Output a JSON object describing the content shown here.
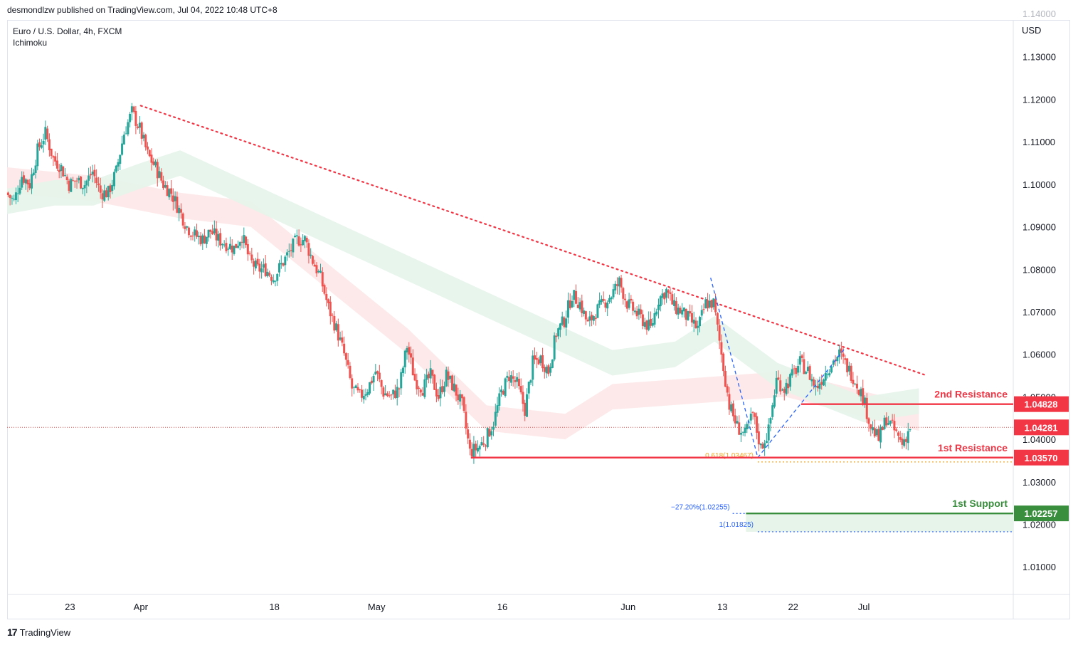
{
  "header": {
    "published_line": "desmondlzw published on TradingView.com, Jul 04, 2022 10:48 UTC+8"
  },
  "legend": {
    "symbol_line": "Euro / U.S. Dollar, 4h, FXCM",
    "indicator": "Ichimoku"
  },
  "footer": {
    "brand": "TradingView"
  },
  "colors": {
    "up": "#26a69a",
    "down": "#ef5350",
    "resistance": "#f23645",
    "support": "#388e3c",
    "fib_blue": "#2962ff",
    "fib_gold": "#f5a623",
    "cloud_bull": "#e6f4ea",
    "cloud_bear": "#fde7e7",
    "price_tag": "#f23645",
    "support_tag": "#388e3c"
  },
  "chart_data": {
    "type": "candlestick",
    "currency_label": "USD",
    "ylim": [
      1.0035,
      1.1385
    ],
    "y_ticks": [
      "1.13000",
      "1.12000",
      "1.11000",
      "1.10000",
      "1.09000",
      "1.08000",
      "1.07000",
      "1.06000",
      "1.05000",
      "1.04000",
      "1.03000",
      "1.02000",
      "1.01000"
    ],
    "y_tick_values": [
      1.13,
      1.12,
      1.11,
      1.1,
      1.09,
      1.08,
      1.07,
      1.06,
      1.05,
      1.04,
      1.03,
      1.02,
      1.01
    ],
    "x_ticks": [
      {
        "label": "23",
        "day": 5
      },
      {
        "label": "Apr",
        "day": 14
      },
      {
        "label": "18",
        "day": 31
      },
      {
        "label": "May",
        "day": 44
      },
      {
        "label": "16",
        "day": 60
      },
      {
        "label": "Jun",
        "day": 76
      },
      {
        "label": "13",
        "day": 88
      },
      {
        "label": "22",
        "day": 97
      },
      {
        "label": "Jul",
        "day": 106
      }
    ],
    "x_day_range": [
      -3,
      125
    ],
    "price_path": [
      [
        -3,
        1.098
      ],
      [
        -2,
        1.096
      ],
      [
        -1,
        1.102
      ],
      [
        0,
        1.1
      ],
      [
        1,
        1.108
      ],
      [
        2,
        1.112
      ],
      [
        3,
        1.106
      ],
      [
        4,
        1.104
      ],
      [
        5,
        1.1
      ],
      [
        6,
        1.101
      ],
      [
        7,
        1.1
      ],
      [
        8,
        1.103
      ],
      [
        9,
        1.098
      ],
      [
        10,
        1.098
      ],
      [
        11,
        1.103
      ],
      [
        12,
        1.112
      ],
      [
        13,
        1.117
      ],
      [
        14,
        1.113
      ],
      [
        15,
        1.107
      ],
      [
        16,
        1.104
      ],
      [
        17,
        1.1
      ],
      [
        18,
        1.098
      ],
      [
        19,
        1.094
      ],
      [
        20,
        1.09
      ],
      [
        21,
        1.088
      ],
      [
        22,
        1.087
      ],
      [
        23,
        1.089
      ],
      [
        24,
        1.087
      ],
      [
        25,
        1.086
      ],
      [
        26,
        1.085
      ],
      [
        27,
        1.088
      ],
      [
        28,
        1.082
      ],
      [
        29,
        1.08
      ],
      [
        30,
        1.08
      ],
      [
        31,
        1.078
      ],
      [
        32,
        1.081
      ],
      [
        33,
        1.084
      ],
      [
        34,
        1.087
      ],
      [
        35,
        1.087
      ],
      [
        36,
        1.082
      ],
      [
        37,
        1.078
      ],
      [
        38,
        1.071
      ],
      [
        39,
        1.066
      ],
      [
        40,
        1.06
      ],
      [
        41,
        1.052
      ],
      [
        42,
        1.05
      ],
      [
        43,
        1.052
      ],
      [
        44,
        1.056
      ],
      [
        45,
        1.051
      ],
      [
        46,
        1.05
      ],
      [
        47,
        1.052
      ],
      [
        48,
        1.062
      ],
      [
        49,
        1.054
      ],
      [
        50,
        1.052
      ],
      [
        51,
        1.055
      ],
      [
        52,
        1.05
      ],
      [
        53,
        1.055
      ],
      [
        54,
        1.052
      ],
      [
        55,
        1.048
      ],
      [
        56,
        1.037
      ],
      [
        57,
        1.038
      ],
      [
        58,
        1.04
      ],
      [
        59,
        1.044
      ],
      [
        60,
        1.051
      ],
      [
        61,
        1.055
      ],
      [
        62,
        1.053
      ],
      [
        63,
        1.047
      ],
      [
        64,
        1.058
      ],
      [
        65,
        1.059
      ],
      [
        66,
        1.056
      ],
      [
        67,
        1.065
      ],
      [
        68,
        1.068
      ],
      [
        69,
        1.074
      ],
      [
        70,
        1.072
      ],
      [
        71,
        1.067
      ],
      [
        72,
        1.07
      ],
      [
        73,
        1.072
      ],
      [
        74,
        1.074
      ],
      [
        75,
        1.077
      ],
      [
        76,
        1.072
      ],
      [
        77,
        1.07
      ],
      [
        78,
        1.068
      ],
      [
        79,
        1.066
      ],
      [
        80,
        1.073
      ],
      [
        81,
        1.075
      ],
      [
        82,
        1.071
      ],
      [
        83,
        1.07
      ],
      [
        84,
        1.068
      ],
      [
        85,
        1.066
      ],
      [
        86,
        1.072
      ],
      [
        87,
        1.072
      ],
      [
        88,
        1.06
      ],
      [
        89,
        1.048
      ],
      [
        90,
        1.043
      ],
      [
        91,
        1.041
      ],
      [
        92,
        1.046
      ],
      [
        93,
        1.038
      ],
      [
        94,
        1.042
      ],
      [
        95,
        1.054
      ],
      [
        96,
        1.052
      ],
      [
        97,
        1.055
      ],
      [
        98,
        1.058
      ],
      [
        99,
        1.056
      ],
      [
        100,
        1.052
      ],
      [
        101,
        1.055
      ],
      [
        102,
        1.058
      ],
      [
        103,
        1.06
      ],
      [
        104,
        1.057
      ],
      [
        105,
        1.054
      ],
      [
        106,
        1.05
      ],
      [
        107,
        1.043
      ],
      [
        108,
        1.04
      ],
      [
        109,
        1.045
      ],
      [
        110,
        1.042
      ],
      [
        111,
        1.039
      ],
      [
        112,
        1.0428
      ]
    ],
    "kumo_bull": [
      [
        -3,
        1.099
      ],
      [
        3,
        1.101
      ],
      [
        8,
        1.101
      ],
      [
        14,
        1.105
      ],
      [
        19,
        1.108
      ],
      [
        74,
        1.061
      ],
      [
        82,
        1.063
      ],
      [
        87,
        1.069
      ],
      [
        95,
        1.058
      ],
      [
        106,
        1.05
      ],
      [
        113,
        1.052
      ]
    ],
    "kumo_bear": [
      [
        -3,
        1.104
      ],
      [
        8,
        1.102
      ],
      [
        19,
        1.098
      ],
      [
        28,
        1.096
      ],
      [
        36,
        1.084
      ],
      [
        48,
        1.066
      ],
      [
        58,
        1.048
      ],
      [
        68,
        1.046
      ],
      [
        74,
        1.053
      ],
      [
        96,
        1.056
      ],
      [
        113,
        1.048
      ]
    ],
    "trendline": {
      "x1": 14,
      "y1": 1.1185,
      "x2": 114,
      "y2": 1.055
    },
    "levels": [
      {
        "name": "2nd Resistance",
        "value": 1.04828,
        "tag": "1.04828",
        "x_start": 98
      },
      {
        "name": "1st Resistance",
        "value": 1.0357,
        "tag": "1.03570",
        "x_start": 56
      },
      {
        "name": "1st Support",
        "value": 1.02257,
        "tag": "1.02257",
        "x_start": 91
      }
    ],
    "current_price": {
      "value": 1.04281,
      "tag": "1.04281"
    },
    "fib": {
      "gold_label": "0.618(1.03467)",
      "gold_value": 1.03467,
      "ext_label": "−27.20%(1.02255)",
      "ext_value": 1.02255,
      "one_label": "1(1.01825)",
      "one_value": 1.01825,
      "leg1": [
        [
          86.5,
          1.078
        ],
        [
          92.5,
          1.0357
        ]
      ],
      "leg2": [
        [
          92.5,
          1.0357
        ],
        [
          103.5,
          1.0612
        ]
      ]
    },
    "clipped_top_label": "1.14000"
  }
}
